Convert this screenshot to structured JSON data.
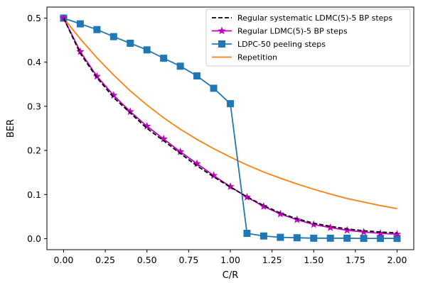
{
  "chart_data": {
    "type": "line",
    "title": "",
    "xlabel": "C/R",
    "ylabel": "BER",
    "xlim": [
      -0.1,
      2.1
    ],
    "ylim": [
      -0.025,
      0.525
    ],
    "xticks": [
      0.0,
      0.25,
      0.5,
      0.75,
      1.0,
      1.25,
      1.5,
      1.75,
      2.0
    ],
    "xtick_labels": [
      "0.00",
      "0.25",
      "0.50",
      "0.75",
      "1.00",
      "1.25",
      "1.50",
      "1.75",
      "2.00"
    ],
    "yticks": [
      0.0,
      0.1,
      0.2,
      0.3,
      0.4,
      0.5
    ],
    "ytick_labels": [
      "0.0",
      "0.1",
      "0.2",
      "0.3",
      "0.4",
      "0.5"
    ],
    "grid": false,
    "legend_position": "top-right",
    "series": [
      {
        "name": "Regular systematic LDMC(5)-5 BP steps",
        "color": "#000000",
        "style": "dashed",
        "marker": "none",
        "x": [
          0.0,
          0.1,
          0.2,
          0.3,
          0.4,
          0.5,
          0.6,
          0.7,
          0.8,
          0.9,
          1.0,
          1.1,
          1.2,
          1.3,
          1.4,
          1.5,
          1.6,
          1.7,
          1.8,
          1.9,
          2.0
        ],
        "y": [
          0.5,
          0.42,
          0.365,
          0.32,
          0.285,
          0.25,
          0.222,
          0.193,
          0.165,
          0.14,
          0.117,
          0.095,
          0.075,
          0.058,
          0.045,
          0.035,
          0.028,
          0.022,
          0.018,
          0.015,
          0.013
        ]
      },
      {
        "name": "Regular LDMC(5)-5 BP steps",
        "color": "#bf00bf",
        "style": "solid",
        "marker": "star",
        "x": [
          0.0,
          0.1,
          0.2,
          0.3,
          0.4,
          0.5,
          0.6,
          0.7,
          0.8,
          0.9,
          1.0,
          1.1,
          1.2,
          1.3,
          1.4,
          1.5,
          1.6,
          1.7,
          1.8,
          1.9,
          2.0
        ],
        "y": [
          0.5,
          0.424,
          0.368,
          0.325,
          0.288,
          0.255,
          0.226,
          0.197,
          0.17,
          0.143,
          0.118,
          0.094,
          0.073,
          0.056,
          0.043,
          0.032,
          0.025,
          0.019,
          0.015,
          0.012,
          0.01
        ]
      },
      {
        "name": "LDPC-50 peeling steps",
        "color": "#1f77b4",
        "style": "solid",
        "marker": "square",
        "x": [
          0.0,
          0.1,
          0.2,
          0.3,
          0.4,
          0.5,
          0.6,
          0.7,
          0.8,
          0.9,
          1.0,
          1.1,
          1.2,
          1.3,
          1.4,
          1.5,
          1.6,
          1.7,
          1.8,
          1.9,
          2.0
        ],
        "y": [
          0.5,
          0.487,
          0.474,
          0.458,
          0.443,
          0.428,
          0.409,
          0.391,
          0.369,
          0.341,
          0.306,
          0.012,
          0.006,
          0.003,
          0.002,
          0.001,
          0.001,
          0.001,
          0.0005,
          0.0005,
          0.0005
        ]
      },
      {
        "name": "Repetition",
        "color": "#ff7f0e",
        "style": "solid",
        "marker": "none",
        "x": [
          0.0,
          0.1,
          0.2,
          0.3,
          0.4,
          0.5,
          0.6,
          0.7,
          0.8,
          0.9,
          1.0,
          1.1,
          1.2,
          1.3,
          1.4,
          1.5,
          1.6,
          1.7,
          1.8,
          1.9,
          2.0
        ],
        "y": [
          0.5,
          0.453,
          0.41,
          0.371,
          0.335,
          0.303,
          0.274,
          0.248,
          0.225,
          0.204,
          0.185,
          0.167,
          0.151,
          0.137,
          0.124,
          0.112,
          0.101,
          0.091,
          0.083,
          0.075,
          0.068
        ]
      }
    ]
  }
}
